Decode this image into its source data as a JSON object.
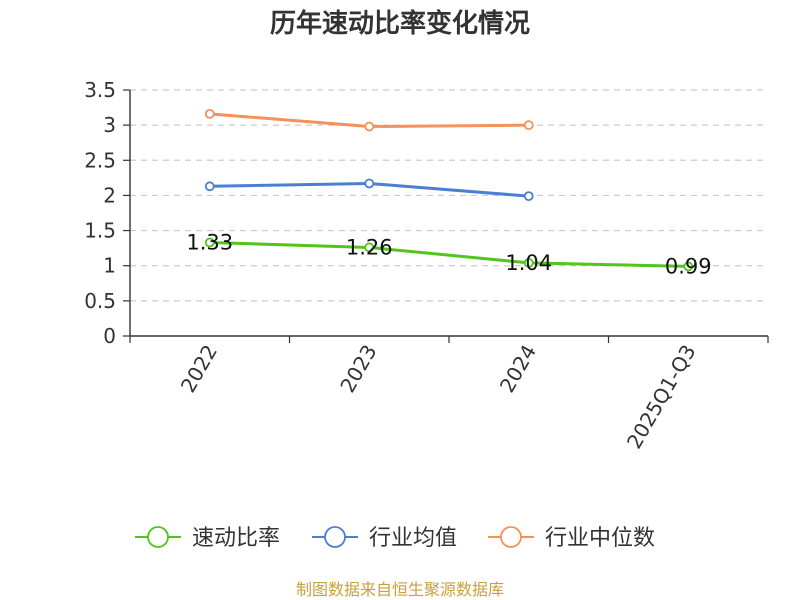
{
  "chart_data": {
    "type": "line",
    "title": "历年速动比率变化情况",
    "categories": [
      "2022",
      "2023",
      "2024",
      "2025Q1-Q3"
    ],
    "ylim": [
      0,
      3.5
    ],
    "yticks": [
      "0",
      "0.5",
      "1",
      "1.5",
      "2",
      "2.5",
      "3",
      "3.5"
    ],
    "grid": true,
    "legend_position": "bottom",
    "series": [
      {
        "name": "速动比率",
        "color": "#52c41a",
        "values": [
          1.33,
          1.26,
          1.04,
          0.99
        ],
        "labels": [
          "1.33",
          "1.26",
          "1.04",
          "0.99"
        ]
      },
      {
        "name": "行业均值",
        "color": "#4a7fd4",
        "values": [
          2.13,
          2.17,
          1.99,
          null
        ]
      },
      {
        "name": "行业中位数",
        "color": "#f5915a",
        "values": [
          3.16,
          2.98,
          3.0,
          null
        ]
      }
    ]
  },
  "source": "制图数据来自恒生聚源数据库"
}
